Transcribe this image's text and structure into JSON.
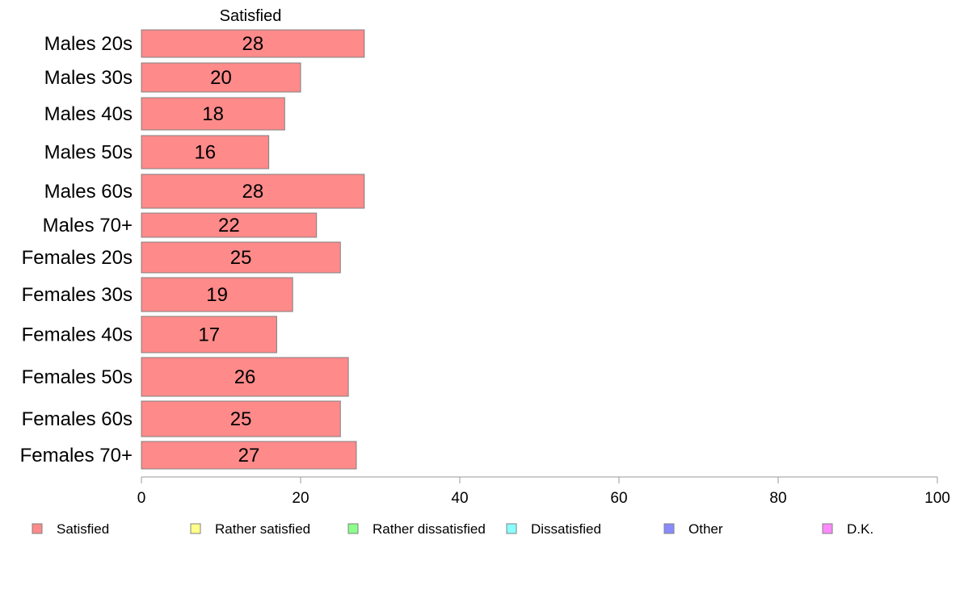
{
  "chart_data": {
    "type": "bar",
    "orientation": "horizontal",
    "column_title": "Satisfied",
    "categories": [
      "Males 20s",
      "Males 30s",
      "Males 40s",
      "Males 50s",
      "Males 60s",
      "Males 70+",
      "Females 20s",
      "Females 30s",
      "Females 40s",
      "Females 50s",
      "Females 60s",
      "Females 70+"
    ],
    "series": [
      {
        "name": "Satisfied",
        "color": "#ff8a8a",
        "values": [
          28,
          20,
          18,
          16,
          28,
          22,
          25,
          19,
          17,
          26,
          25,
          27
        ]
      }
    ],
    "value_labels": [
      "28",
      "20",
      "18",
      "16",
      "28",
      "22",
      "25",
      "19",
      "17",
      "26",
      "25",
      "27"
    ],
    "xlim": [
      0,
      100
    ],
    "x_ticks": [
      0,
      20,
      40,
      60,
      80,
      100
    ],
    "x_tick_labels": [
      "0",
      "20",
      "40",
      "60",
      "80",
      "100"
    ],
    "grid": false,
    "legend_position": "bottom",
    "legend": [
      {
        "label": "Satisfied",
        "color": "#ff8a8a"
      },
      {
        "label": "Rather satisfied",
        "color": "#ffff8a"
      },
      {
        "label": "Rather dissatisfied",
        "color": "#8aff8a"
      },
      {
        "label": "Dissatisfied",
        "color": "#8affff"
      },
      {
        "label": "Other",
        "color": "#8a8aff"
      },
      {
        "label": "D.K.",
        "color": "#ff8aff"
      }
    ]
  }
}
